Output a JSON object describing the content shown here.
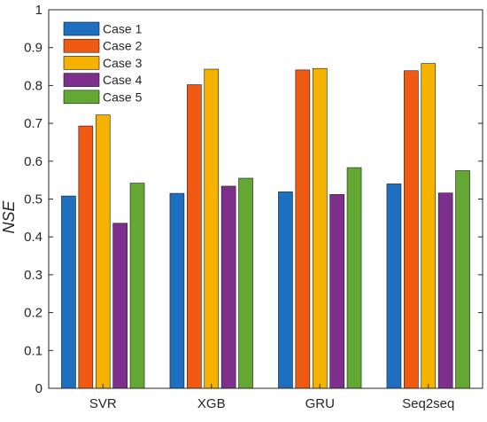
{
  "chart_data": {
    "type": "bar",
    "title": "",
    "xlabel": "",
    "ylabel": "NSE",
    "ylim": [
      0,
      1
    ],
    "yticks": [
      "0",
      "0.1",
      "0.2",
      "0.3",
      "0.4",
      "0.5",
      "0.6",
      "0.7",
      "0.8",
      "0.9",
      "1"
    ],
    "categories": [
      "SVR",
      "XGB",
      "GRU",
      "Seq2seq"
    ],
    "series": [
      {
        "name": "Case 1",
        "color": "#1f6fc0",
        "values": [
          0.508,
          0.515,
          0.519,
          0.54
        ]
      },
      {
        "name": "Case 2",
        "color": "#f15a12",
        "values": [
          0.693,
          0.802,
          0.841,
          0.839
        ]
      },
      {
        "name": "Case 3",
        "color": "#f5b300",
        "values": [
          0.722,
          0.843,
          0.845,
          0.858
        ]
      },
      {
        "name": "Case 4",
        "color": "#7e2f8e",
        "values": [
          0.436,
          0.534,
          0.512,
          0.516
        ]
      },
      {
        "name": "Case 5",
        "color": "#63a833",
        "values": [
          0.542,
          0.555,
          0.583,
          0.575
        ]
      }
    ],
    "legend_position": "top-left",
    "grid": false
  }
}
